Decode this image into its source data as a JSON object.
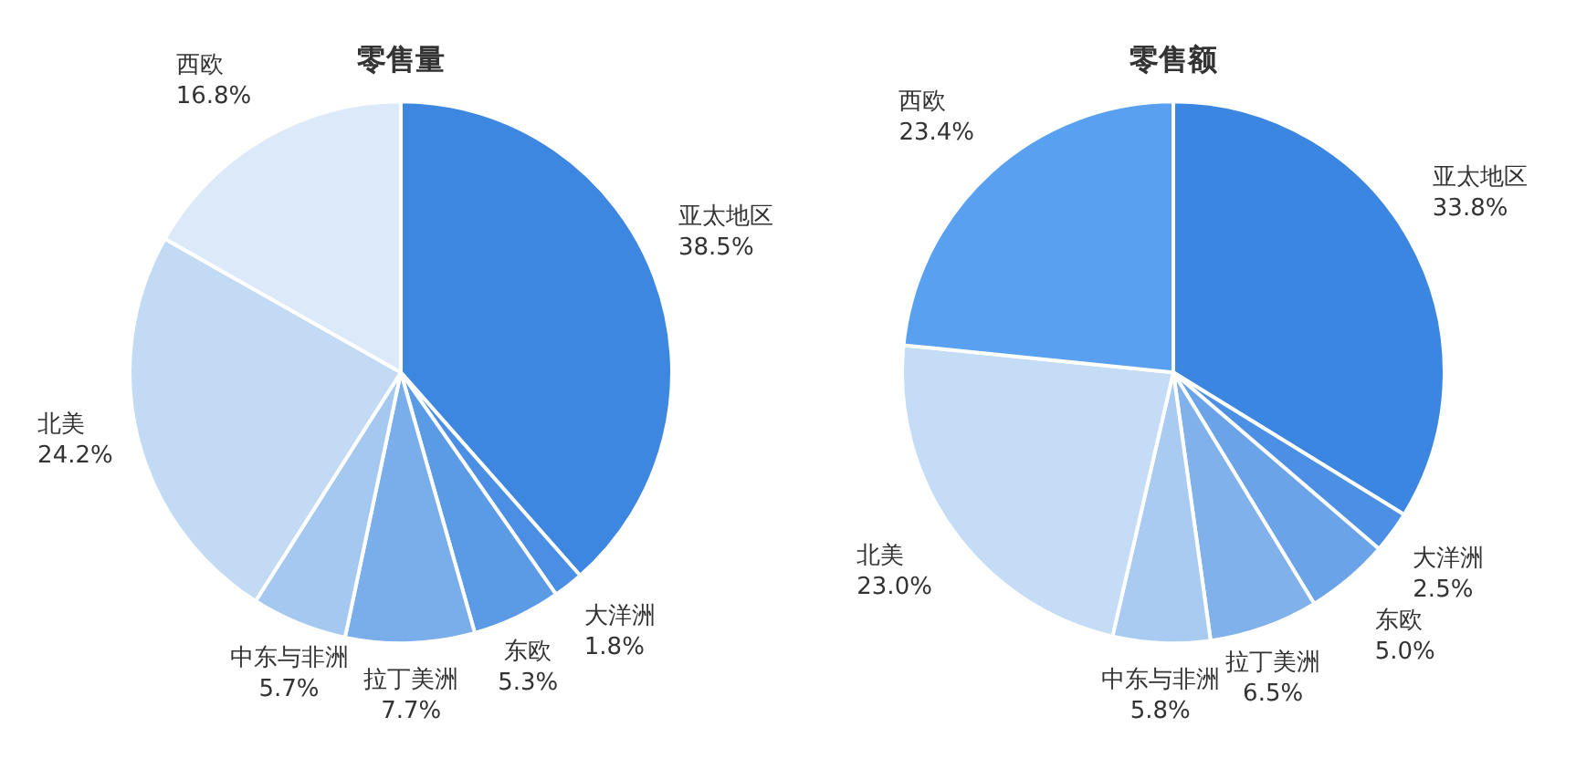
{
  "chart_data": [
    {
      "type": "pie",
      "title": "零售量",
      "categories": [
        "亚太地区",
        "大洋洲",
        "东欧",
        "拉丁美洲",
        "中东与非洲",
        "北美",
        "西欧"
      ],
      "values": [
        38.5,
        1.8,
        5.3,
        7.7,
        5.7,
        24.2,
        16.8
      ],
      "value_labels": [
        "38.5%",
        "1.8%",
        "5.3%",
        "7.7%",
        "5.7%",
        "24.2%",
        "16.8%"
      ],
      "colors": [
        "#3d87e0",
        "#4a8fe3",
        "#5b9be6",
        "#7aaeea",
        "#a5c8f0",
        "#c3daf5",
        "#dce9f8"
      ]
    },
    {
      "type": "pie",
      "title": "零售额",
      "categories": [
        "亚太地区",
        "大洋洲",
        "东欧",
        "拉丁美洲",
        "中东与非洲",
        "北美",
        "西欧"
      ],
      "values": [
        33.8,
        2.5,
        5.0,
        6.5,
        5.8,
        23.0,
        23.4
      ],
      "value_labels": [
        "33.8%",
        "2.5%",
        "5.0%",
        "6.5%",
        "5.8%",
        "23.0%",
        "23.4%"
      ],
      "colors": [
        "#3a86e0",
        "#4b90e4",
        "#6aa3e8",
        "#80b1eb",
        "#a9cbf1",
        "#c5dcf6",
        "#59a0f0"
      ]
    }
  ]
}
